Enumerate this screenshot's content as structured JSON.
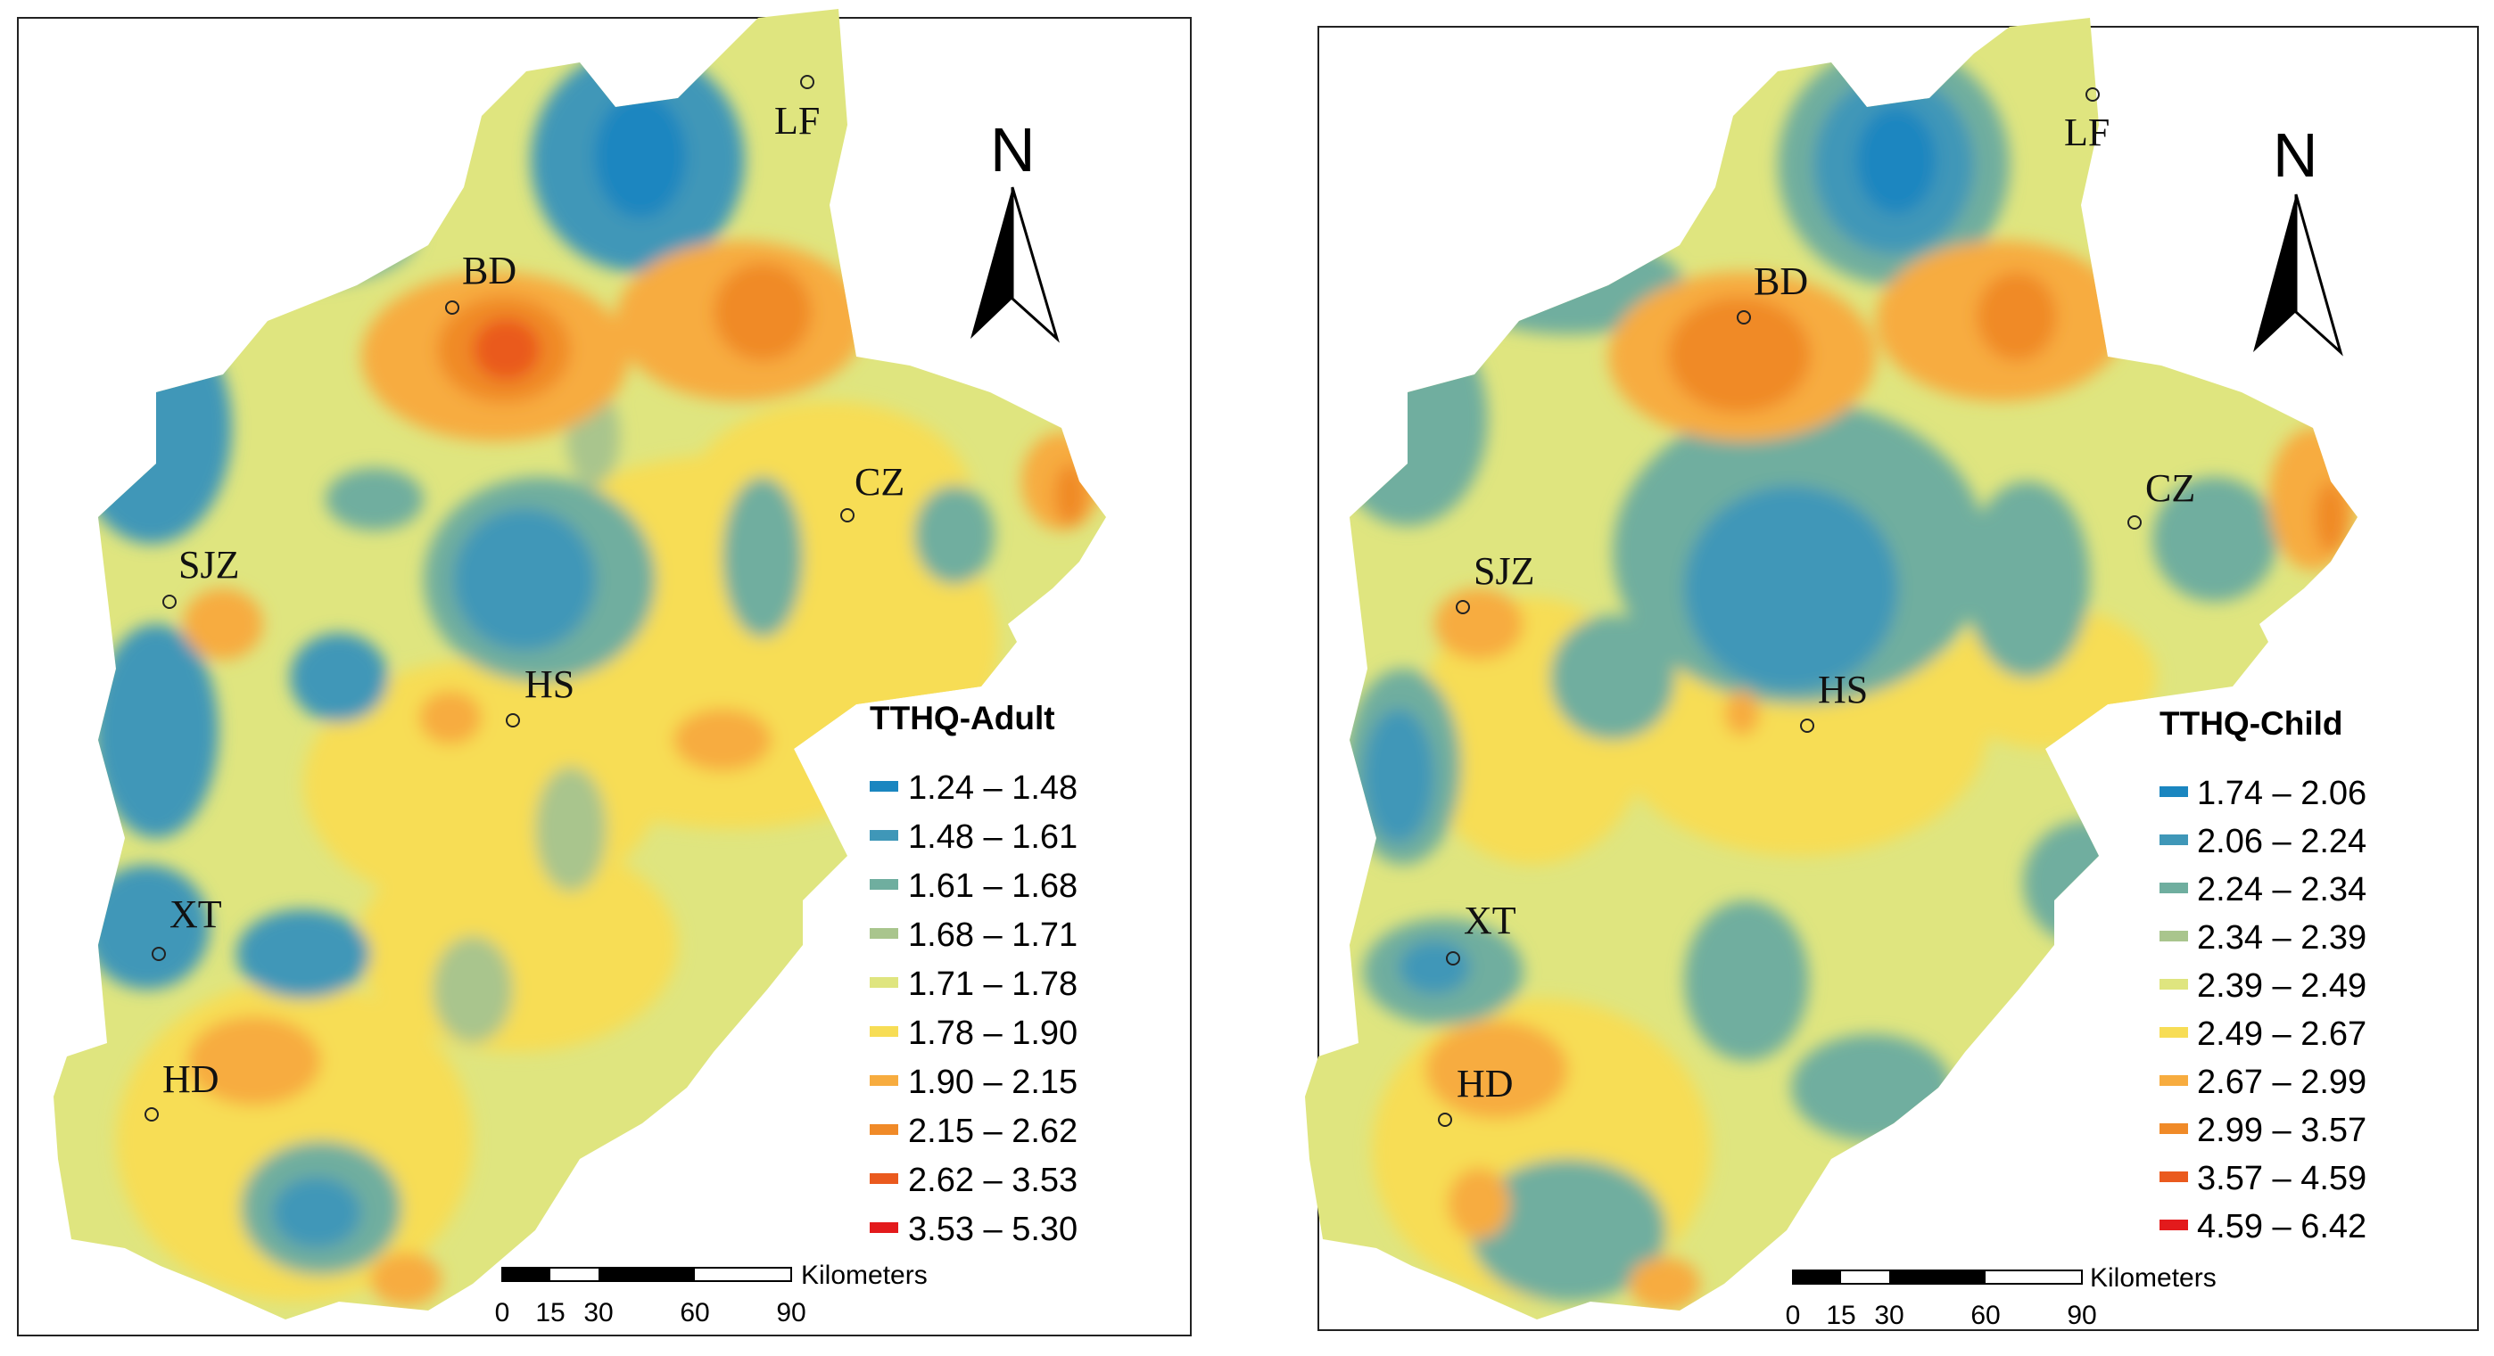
{
  "colors": {
    "c1": "#1a86c0",
    "c2": "#3f97b8",
    "c3": "#6fae9f",
    "c4": "#a9c58d",
    "c5": "#dfe57f",
    "c6": "#f7dd55",
    "c7": "#f7ac3f",
    "c8": "#f08a28",
    "c9": "#ea5a1e",
    "c10": "#e31a1c"
  },
  "cities": [
    "LF",
    "BD",
    "CZ",
    "SJZ",
    "HS",
    "XT",
    "HD"
  ],
  "north_arrow": {
    "letter": "N",
    "icon": "north-arrow-icon"
  },
  "scale_bar": {
    "unit": "Kilometers",
    "ticks": [
      "0",
      "15",
      "30",
      "60",
      "90"
    ]
  },
  "maps": [
    {
      "legend": {
        "title": "TTHQ-Adult",
        "classes": [
          "1.24 – 1.48",
          "1.48 – 1.61",
          "1.61 – 1.68",
          "1.68 – 1.71",
          "1.71 – 1.78",
          "1.78 – 1.90",
          "1.90 – 2.15",
          "2.15 – 2.62",
          "2.62 – 3.53",
          "3.53 – 5.30"
        ]
      }
    },
    {
      "legend": {
        "title": "TTHQ-Child",
        "classes": [
          "1.74 – 2.06",
          "2.06 – 2.24",
          "2.24 – 2.34",
          "2.34 – 2.39",
          "2.39 – 2.49",
          "2.49 – 2.67",
          "2.67 – 2.99",
          "2.99 – 3.57",
          "3.57 – 4.59",
          "4.59 – 6.42"
        ]
      }
    }
  ]
}
